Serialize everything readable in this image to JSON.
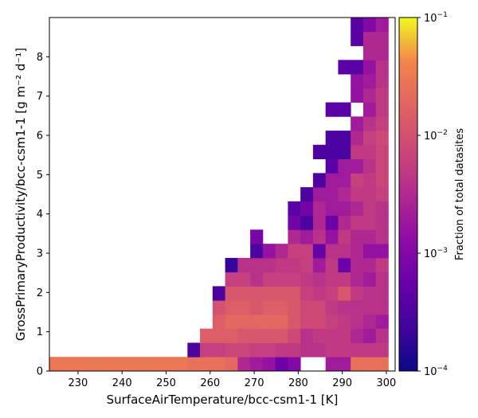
{
  "chart_data": {
    "type": "heatmap",
    "xlabel": "SurfaceAirTemperature/bcc-csm1-1 [K]",
    "ylabel": "GrossPrimaryProductivity/bcc-csm1-1 [g m⁻² d⁻¹]",
    "colorbar_label": "Fraction of total datasites",
    "colormap": "plasma",
    "color_scale": "log",
    "color_range": [
      0.0001,
      0.1
    ],
    "xlim": [
      223.5,
      302
    ],
    "ylim": [
      0,
      9
    ],
    "x_ticks": [
      230,
      240,
      250,
      260,
      270,
      280,
      290,
      300
    ],
    "x_tick_labels": [
      "230",
      "240",
      "250",
      "260",
      "270",
      "280",
      "290",
      "300"
    ],
    "y_ticks": [
      0,
      1,
      2,
      3,
      4,
      5,
      6,
      7,
      8
    ],
    "y_tick_labels": [
      "0",
      "1",
      "2",
      "3",
      "4",
      "5",
      "6",
      "7",
      "8"
    ],
    "colorbar_ticks": [
      {
        "value": 0.0001,
        "base": "10",
        "exp": "−4"
      },
      {
        "value": 0.001,
        "base": "10",
        "exp": "−3"
      },
      {
        "value": 0.01,
        "base": "10",
        "exp": "−2"
      },
      {
        "value": 0.1,
        "base": "10",
        "exp": "−1"
      }
    ],
    "bin_width_x": 2.85,
    "bin_height_y": 0.36,
    "cells": [
      [
        223.5,
        0,
        0.03
      ],
      [
        226.35,
        0,
        0.03
      ],
      [
        229.2,
        0,
        0.03
      ],
      [
        232.05,
        0,
        0.03
      ],
      [
        234.9,
        0,
        0.03
      ],
      [
        237.75,
        0,
        0.03
      ],
      [
        240.6,
        0,
        0.03
      ],
      [
        243.45,
        0,
        0.03
      ],
      [
        246.3,
        0,
        0.03
      ],
      [
        249.15,
        0,
        0.03
      ],
      [
        252.0,
        0,
        0.03
      ],
      [
        254.85,
        0,
        0.025
      ],
      [
        257.7,
        0,
        0.025
      ],
      [
        260.55,
        0,
        0.025
      ],
      [
        263.4,
        0,
        0.02
      ],
      [
        266.25,
        0,
        0.003
      ],
      [
        269.1,
        0,
        0.002
      ],
      [
        271.95,
        0,
        0.0015
      ],
      [
        274.8,
        0,
        0.0006
      ],
      [
        277.65,
        0,
        0.001
      ],
      [
        286.2,
        0,
        0.002
      ],
      [
        289.05,
        0,
        0.002
      ],
      [
        291.9,
        0,
        0.025
      ],
      [
        294.75,
        0,
        0.025
      ],
      [
        297.6,
        0,
        0.025
      ],
      [
        254.85,
        0.36,
        0.0003
      ],
      [
        257.7,
        0.36,
        0.006
      ],
      [
        260.55,
        0.36,
        0.006
      ],
      [
        263.4,
        0.36,
        0.007
      ],
      [
        266.25,
        0.36,
        0.007
      ],
      [
        269.1,
        0.36,
        0.006
      ],
      [
        271.95,
        0.36,
        0.006
      ],
      [
        274.8,
        0.36,
        0.005
      ],
      [
        277.65,
        0.36,
        0.005
      ],
      [
        280.5,
        0.36,
        0.004
      ],
      [
        283.35,
        0.36,
        0.004
      ],
      [
        286.2,
        0.36,
        0.005
      ],
      [
        289.05,
        0.36,
        0.005
      ],
      [
        291.9,
        0.36,
        0.005
      ],
      [
        294.75,
        0.36,
        0.005
      ],
      [
        297.6,
        0.36,
        0.005
      ],
      [
        257.7,
        0.72,
        0.015
      ],
      [
        260.55,
        0.72,
        0.015
      ],
      [
        263.4,
        0.72,
        0.015
      ],
      [
        266.25,
        0.72,
        0.012
      ],
      [
        269.1,
        0.72,
        0.012
      ],
      [
        271.95,
        0.72,
        0.012
      ],
      [
        274.8,
        0.72,
        0.012
      ],
      [
        277.65,
        0.72,
        0.008
      ],
      [
        280.5,
        0.72,
        0.004
      ],
      [
        283.35,
        0.72,
        0.005
      ],
      [
        286.2,
        0.72,
        0.005
      ],
      [
        289.05,
        0.72,
        0.005
      ],
      [
        291.9,
        0.72,
        0.003
      ],
      [
        294.75,
        0.72,
        0.002
      ],
      [
        297.6,
        0.72,
        0.004
      ],
      [
        260.55,
        1.08,
        0.015
      ],
      [
        263.4,
        1.08,
        0.02
      ],
      [
        266.25,
        1.08,
        0.02
      ],
      [
        269.1,
        1.08,
        0.02
      ],
      [
        271.95,
        1.08,
        0.02
      ],
      [
        274.8,
        1.08,
        0.02
      ],
      [
        277.65,
        1.08,
        0.012
      ],
      [
        280.5,
        1.08,
        0.008
      ],
      [
        283.35,
        1.08,
        0.008
      ],
      [
        286.2,
        1.08,
        0.006
      ],
      [
        289.05,
        1.08,
        0.005
      ],
      [
        291.9,
        1.08,
        0.004
      ],
      [
        294.75,
        1.08,
        0.003
      ],
      [
        297.6,
        1.08,
        0.002
      ],
      [
        260.55,
        1.44,
        0.01
      ],
      [
        263.4,
        1.44,
        0.015
      ],
      [
        266.25,
        1.44,
        0.015
      ],
      [
        269.1,
        1.44,
        0.012
      ],
      [
        271.95,
        1.44,
        0.015
      ],
      [
        274.8,
        1.44,
        0.015
      ],
      [
        277.65,
        1.44,
        0.012
      ],
      [
        280.5,
        1.44,
        0.008
      ],
      [
        283.35,
        1.44,
        0.008
      ],
      [
        286.2,
        1.44,
        0.005
      ],
      [
        289.05,
        1.44,
        0.004
      ],
      [
        291.9,
        1.44,
        0.004
      ],
      [
        294.75,
        1.44,
        0.004
      ],
      [
        297.6,
        1.44,
        0.004
      ],
      [
        260.55,
        1.8,
        0.0003
      ],
      [
        263.4,
        1.8,
        0.012
      ],
      [
        266.25,
        1.8,
        0.012
      ],
      [
        269.1,
        1.8,
        0.012
      ],
      [
        271.95,
        1.8,
        0.012
      ],
      [
        274.8,
        1.8,
        0.012
      ],
      [
        277.65,
        1.8,
        0.012
      ],
      [
        280.5,
        1.8,
        0.006
      ],
      [
        283.35,
        1.8,
        0.005
      ],
      [
        286.2,
        1.8,
        0.006
      ],
      [
        289.05,
        1.8,
        0.012
      ],
      [
        291.9,
        1.8,
        0.005
      ],
      [
        294.75,
        1.8,
        0.004
      ],
      [
        297.6,
        1.8,
        0.004
      ],
      [
        263.4,
        2.16,
        0.006
      ],
      [
        266.25,
        2.16,
        0.006
      ],
      [
        269.1,
        2.16,
        0.004
      ],
      [
        271.95,
        2.16,
        0.006
      ],
      [
        274.8,
        2.16,
        0.006
      ],
      [
        277.65,
        2.16,
        0.006
      ],
      [
        280.5,
        2.16,
        0.005
      ],
      [
        283.35,
        2.16,
        0.004
      ],
      [
        286.2,
        2.16,
        0.005
      ],
      [
        289.05,
        2.16,
        0.005
      ],
      [
        291.9,
        2.16,
        0.003
      ],
      [
        294.75,
        2.16,
        0.002
      ],
      [
        297.6,
        2.16,
        0.004
      ],
      [
        263.4,
        2.52,
        0.0002
      ],
      [
        266.25,
        2.52,
        0.004
      ],
      [
        269.1,
        2.52,
        0.004
      ],
      [
        271.95,
        2.52,
        0.004
      ],
      [
        274.8,
        2.52,
        0.005
      ],
      [
        277.65,
        2.52,
        0.005
      ],
      [
        280.5,
        2.52,
        0.006
      ],
      [
        283.35,
        2.52,
        0.002
      ],
      [
        286.2,
        2.52,
        0.005
      ],
      [
        289.05,
        2.52,
        0.0006
      ],
      [
        291.9,
        2.52,
        0.003
      ],
      [
        294.75,
        2.52,
        0.003
      ],
      [
        297.6,
        2.52,
        0.005
      ],
      [
        269.1,
        2.88,
        0.0003
      ],
      [
        271.95,
        2.88,
        0.0015
      ],
      [
        274.8,
        2.88,
        0.003
      ],
      [
        277.65,
        2.88,
        0.006
      ],
      [
        280.5,
        2.88,
        0.006
      ],
      [
        283.35,
        2.88,
        0.0005
      ],
      [
        286.2,
        2.88,
        0.004
      ],
      [
        289.05,
        2.88,
        0.004
      ],
      [
        291.9,
        2.88,
        0.003
      ],
      [
        294.75,
        2.88,
        0.0015
      ],
      [
        297.6,
        2.88,
        0.0015
      ],
      [
        269.1,
        3.24,
        0.0008
      ],
      [
        277.65,
        3.24,
        0.003
      ],
      [
        280.5,
        3.24,
        0.002
      ],
      [
        283.35,
        3.24,
        0.004
      ],
      [
        286.2,
        3.24,
        0.0015
      ],
      [
        289.05,
        3.24,
        0.005
      ],
      [
        291.9,
        3.24,
        0.003
      ],
      [
        294.75,
        3.24,
        0.003
      ],
      [
        297.6,
        3.24,
        0.004
      ],
      [
        277.65,
        3.6,
        0.0007
      ],
      [
        280.5,
        3.6,
        0.0003
      ],
      [
        283.35,
        3.6,
        0.003
      ],
      [
        286.2,
        3.6,
        0.0006
      ],
      [
        289.05,
        3.6,
        0.003
      ],
      [
        291.9,
        3.6,
        0.005
      ],
      [
        294.75,
        3.6,
        0.005
      ],
      [
        297.6,
        3.6,
        0.004
      ],
      [
        277.65,
        3.96,
        0.0004
      ],
      [
        280.5,
        3.96,
        0.0007
      ],
      [
        283.35,
        3.96,
        0.003
      ],
      [
        286.2,
        3.96,
        0.002
      ],
      [
        289.05,
        3.96,
        0.002
      ],
      [
        291.9,
        3.96,
        0.003
      ],
      [
        294.75,
        3.96,
        0.005
      ],
      [
        297.6,
        3.96,
        0.004
      ],
      [
        280.5,
        4.32,
        0.0003
      ],
      [
        283.35,
        4.32,
        0.002
      ],
      [
        286.2,
        4.32,
        0.002
      ],
      [
        289.05,
        4.32,
        0.003
      ],
      [
        291.9,
        4.32,
        0.005
      ],
      [
        294.75,
        4.32,
        0.005
      ],
      [
        297.6,
        4.32,
        0.006
      ],
      [
        283.35,
        4.68,
        0.0003
      ],
      [
        286.2,
        4.68,
        0.002
      ],
      [
        289.05,
        4.68,
        0.002
      ],
      [
        291.9,
        4.68,
        0.006
      ],
      [
        294.75,
        4.68,
        0.005
      ],
      [
        297.6,
        4.68,
        0.007
      ],
      [
        286.2,
        5.04,
        0.0004
      ],
      [
        289.05,
        5.04,
        0.002
      ],
      [
        291.9,
        5.04,
        0.002
      ],
      [
        294.75,
        5.04,
        0.004
      ],
      [
        297.6,
        5.04,
        0.007
      ],
      [
        283.35,
        5.4,
        0.0003
      ],
      [
        286.2,
        5.4,
        0.0003
      ],
      [
        289.05,
        5.4,
        0.0003
      ],
      [
        291.9,
        5.4,
        0.005
      ],
      [
        294.75,
        5.4,
        0.005
      ],
      [
        297.6,
        5.4,
        0.007
      ],
      [
        286.2,
        5.76,
        0.0003
      ],
      [
        289.05,
        5.76,
        0.0003
      ],
      [
        291.9,
        5.76,
        0.003
      ],
      [
        294.75,
        5.76,
        0.006
      ],
      [
        297.6,
        5.76,
        0.008
      ],
      [
        291.9,
        6.12,
        0.002
      ],
      [
        294.75,
        6.12,
        0.004
      ],
      [
        297.6,
        6.12,
        0.006
      ],
      [
        286.2,
        6.48,
        0.0004
      ],
      [
        289.05,
        6.48,
        0.0004
      ],
      [
        294.75,
        6.48,
        0.002
      ],
      [
        297.6,
        6.48,
        0.005
      ],
      [
        291.9,
        6.84,
        0.0015
      ],
      [
        294.75,
        6.84,
        0.003
      ],
      [
        297.6,
        6.84,
        0.005
      ],
      [
        291.9,
        7.2,
        0.0015
      ],
      [
        294.75,
        7.2,
        0.002
      ],
      [
        297.6,
        7.2,
        0.004
      ],
      [
        289.05,
        7.56,
        0.0004
      ],
      [
        291.9,
        7.56,
        0.0004
      ],
      [
        294.75,
        7.56,
        0.0015
      ],
      [
        297.6,
        7.56,
        0.004
      ],
      [
        294.75,
        7.92,
        0.003
      ],
      [
        297.6,
        7.92,
        0.003
      ],
      [
        291.9,
        8.28,
        0.0004
      ],
      [
        294.75,
        8.28,
        0.003
      ],
      [
        297.6,
        8.28,
        0.003
      ],
      [
        291.9,
        8.64,
        0.0004
      ],
      [
        294.75,
        8.64,
        0.001
      ],
      [
        297.6,
        8.64,
        0.002
      ],
      [
        294.75,
        9.0,
        0.003
      ],
      [
        297.6,
        9.0,
        0.003
      ]
    ]
  }
}
